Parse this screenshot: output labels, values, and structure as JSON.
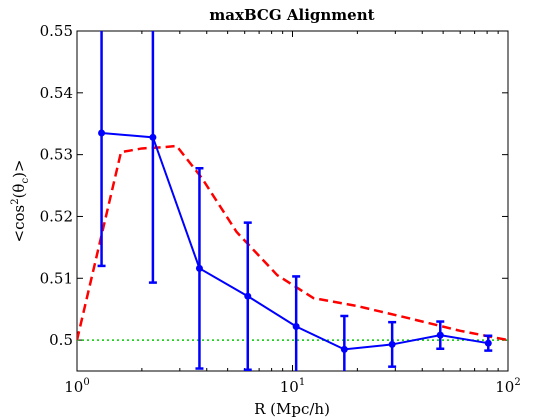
{
  "chart_data": {
    "type": "line",
    "title": "maxBCG Alignment",
    "xlabel": "R (Mpc/h)",
    "ylabel": "<cos²(θc)>",
    "ylabel_parts": {
      "pre": "<cos",
      "sup": "2",
      "mid": "(θ",
      "sub": "c",
      "post": ")>"
    },
    "xscale": "log",
    "xlim": [
      1,
      100
    ],
    "ylim": [
      0.495,
      0.55
    ],
    "x_ticks": [
      {
        "value": 1,
        "base": "10",
        "exp": "0"
      },
      {
        "value": 10,
        "base": "10",
        "exp": "1"
      },
      {
        "value": 100,
        "base": "10",
        "exp": "2"
      }
    ],
    "y_ticks": [
      "0.5",
      "0.51",
      "0.52",
      "0.53",
      "0.54",
      "0.55"
    ],
    "grid": false,
    "legend": "none",
    "series": [
      {
        "style": "solid-errorbar",
        "color": "#0000ff",
        "x": [
          1.3,
          2.25,
          3.7,
          6.2,
          10.4,
          17.4,
          29,
          48.5,
          81
        ],
        "y": [
          0.5335,
          0.5328,
          0.5116,
          0.5071,
          0.5022,
          0.4985,
          0.4993,
          0.5008,
          0.4995
        ],
        "err": [
          0.0215,
          0.0235,
          0.0162,
          0.0119,
          0.0081,
          0.0054,
          0.0036,
          0.0022,
          0.0012
        ]
      },
      {
        "style": "dashed",
        "color": "#ff0000",
        "x": [
          1.0,
          1.6,
          2.0,
          2.5,
          2.9,
          3.8,
          5.5,
          8.5,
          12.5,
          20,
          35,
          60,
          100
        ],
        "y": [
          0.5,
          0.5304,
          0.531,
          0.5312,
          0.5314,
          0.5262,
          0.5175,
          0.5105,
          0.5068,
          0.5055,
          0.5035,
          0.5015,
          0.5
        ]
      },
      {
        "style": "dotted",
        "color": "#00cc00",
        "x": [
          1,
          100
        ],
        "y": [
          0.5,
          0.5
        ]
      }
    ]
  }
}
